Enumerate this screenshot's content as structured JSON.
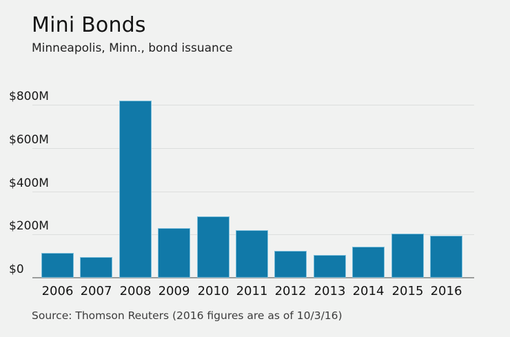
{
  "header": {
    "title": "Mini Bonds",
    "subtitle": "Minneapolis, Minn., bond issuance"
  },
  "chart_data": {
    "type": "bar",
    "title": "Mini Bonds",
    "subtitle": "Minneapolis, Minn., bond issuance",
    "categories": [
      "2006",
      "2007",
      "2008",
      "2009",
      "2010",
      "2011",
      "2012",
      "2013",
      "2014",
      "2015",
      "2016"
    ],
    "values": [
      115,
      95,
      820,
      230,
      285,
      220,
      125,
      105,
      145,
      205,
      195
    ],
    "value_unit": "millions of dollars",
    "xlabel": "",
    "ylabel": "",
    "ylim": [
      0,
      850
    ],
    "yticks": [
      {
        "label": "$800M",
        "value": 800
      },
      {
        "label": "$600M",
        "value": 600
      },
      {
        "label": "$400M",
        "value": 400
      },
      {
        "label": "$200M",
        "value": 200
      },
      {
        "label": "$0",
        "value": 0
      }
    ],
    "grid": true,
    "legend_position": "none",
    "bar_color": "#1179a8",
    "background_color": "#f1f2f1",
    "gridline_color": "#dcdedd",
    "axis_line_color": "#9a9c9b"
  },
  "source": {
    "text": "Source: Thomson Reuters (2016 figures are as of 10/3/16)"
  }
}
